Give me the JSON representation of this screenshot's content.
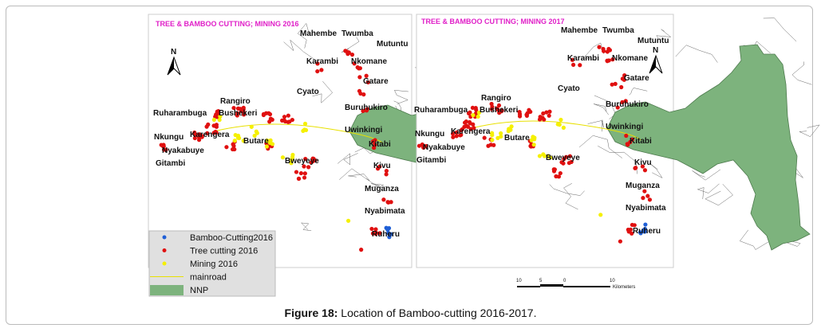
{
  "maps": [
    {
      "title": "TREE & BAMBOO CUTTING; MINING 2016"
    },
    {
      "title": "TREE & BAMBOO CUTTING; MINING 2017"
    }
  ],
  "place_labels": [
    "Mahembe",
    "Twumba",
    "Mutuntu",
    "Karambi",
    "Nkomane",
    "Gatare",
    "Cyato",
    "Rangiro",
    "Buruhukiro",
    "Ruharambuga",
    "Bushekeri",
    "Uwinkingi",
    "Karengera",
    "Butare",
    "Kitabi",
    "Nkungu",
    "Nyakabuye",
    "Gitambi",
    "Bweyeye",
    "Kivu",
    "Muganza",
    "Nyabimata",
    "Ruheru"
  ],
  "north_arrow": "N",
  "legend": [
    {
      "label": "Bamboo-Cutting2016",
      "color": "#1f5fd6",
      "symbol": "dot"
    },
    {
      "label": "Tree cutting 2016",
      "color": "#e01010",
      "symbol": "dot"
    },
    {
      "label": "Mining 2016",
      "color": "#f5f000",
      "symbol": "dot"
    },
    {
      "label": "mainroad",
      "color": "#e8e000",
      "symbol": "line"
    },
    {
      "label": "NNP",
      "color": "#7db37d",
      "symbol": "fill"
    }
  ],
  "scale_bar": {
    "ticks": [
      "10",
      "5",
      "0",
      "10"
    ],
    "unit": "Kilometers"
  },
  "caption": {
    "label": "Figure 18:",
    "text": " Location of Bamboo-cutting 2016-2017."
  }
}
